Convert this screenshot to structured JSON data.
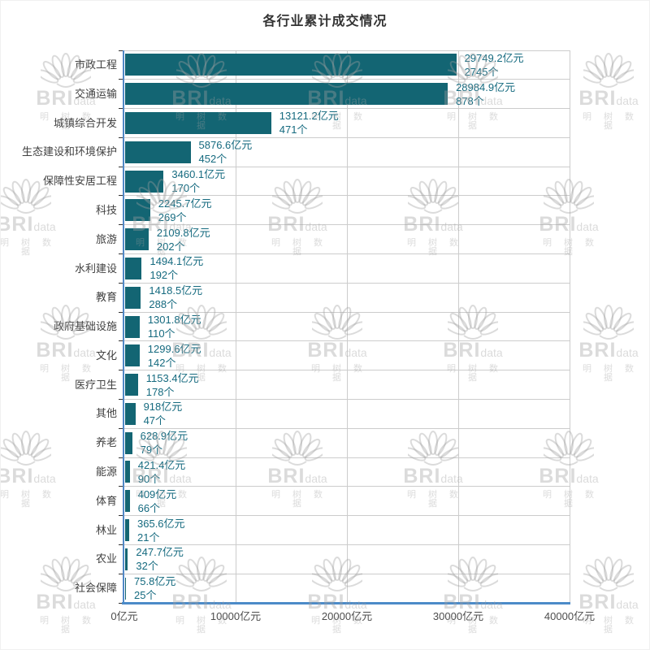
{
  "title": "各行业累计成交情况",
  "watermark": {
    "brand": "BRI",
    "brand_sub": "data",
    "brand_cn": "明 树 数 据"
  },
  "colors": {
    "bar": "#136573",
    "value_label": "#156A7F",
    "category_label": "#404040",
    "axis_line_blue": "#4C8BC8",
    "grid_line": "#CCCCCC",
    "tick_mark": "#333333",
    "axis_tick_label": "#4D4D4D",
    "title": "#333333"
  },
  "x_axis": {
    "min": 0,
    "max": 40000,
    "ticks": [
      "0亿元",
      "10000亿元",
      "20000亿元",
      "30000亿元",
      "40000亿元"
    ]
  },
  "chart_data": {
    "type": "bar",
    "orientation": "horizontal",
    "title": "各行业累计成交情况",
    "xlim": [
      0,
      40000
    ],
    "grid": true,
    "legend_position": "none",
    "categories": [
      "市政工程",
      "交通运输",
      "城镇综合开发",
      "生态建设和环境保护",
      "保障性安居工程",
      "科技",
      "旅游",
      "水利建设",
      "教育",
      "政府基础设施",
      "文化",
      "医疗卫生",
      "其他",
      "养老",
      "能源",
      "体育",
      "林业",
      "农业",
      "社会保障"
    ],
    "series": [
      {
        "name": "亿元",
        "values": [
          29749.2,
          28984.9,
          13121.2,
          5876.6,
          3460.1,
          2245.7,
          2109.8,
          1494.1,
          1418.5,
          1301.8,
          1299.6,
          1153.4,
          918,
          628.9,
          421.4,
          409,
          365.6,
          247.7,
          75.8
        ]
      },
      {
        "name": "个",
        "values": [
          2745,
          878,
          471,
          452,
          170,
          269,
          202,
          192,
          288,
          110,
          142,
          178,
          47,
          79,
          90,
          66,
          21,
          32,
          25
        ]
      }
    ],
    "rows": [
      {
        "category": "市政工程",
        "amount": 29749.2,
        "count": 2745,
        "amount_label": "29749.2亿元",
        "count_label": "2745个"
      },
      {
        "category": "交通运输",
        "amount": 28984.9,
        "count": 878,
        "amount_label": "28984.9亿元",
        "count_label": "878个"
      },
      {
        "category": "城镇综合开发",
        "amount": 13121.2,
        "count": 471,
        "amount_label": "13121.2亿元",
        "count_label": "471个"
      },
      {
        "category": "生态建设和环境保护",
        "amount": 5876.6,
        "count": 452,
        "amount_label": "5876.6亿元",
        "count_label": "452个"
      },
      {
        "category": "保障性安居工程",
        "amount": 3460.1,
        "count": 170,
        "amount_label": "3460.1亿元",
        "count_label": "170个"
      },
      {
        "category": "科技",
        "amount": 2245.7,
        "count": 269,
        "amount_label": "2245.7亿元",
        "count_label": "269个"
      },
      {
        "category": "旅游",
        "amount": 2109.8,
        "count": 202,
        "amount_label": "2109.8亿元",
        "count_label": "202个"
      },
      {
        "category": "水利建设",
        "amount": 1494.1,
        "count": 192,
        "amount_label": "1494.1亿元",
        "count_label": "192个"
      },
      {
        "category": "教育",
        "amount": 1418.5,
        "count": 288,
        "amount_label": "1418.5亿元",
        "count_label": "288个"
      },
      {
        "category": "政府基础设施",
        "amount": 1301.8,
        "count": 110,
        "amount_label": "1301.8亿元",
        "count_label": "110个"
      },
      {
        "category": "文化",
        "amount": 1299.6,
        "count": 142,
        "amount_label": "1299.6亿元",
        "count_label": "142个"
      },
      {
        "category": "医疗卫生",
        "amount": 1153.4,
        "count": 178,
        "amount_label": "1153.4亿元",
        "count_label": "178个"
      },
      {
        "category": "其他",
        "amount": 918,
        "count": 47,
        "amount_label": "918亿元",
        "count_label": "47个"
      },
      {
        "category": "养老",
        "amount": 628.9,
        "count": 79,
        "amount_label": "628.9亿元",
        "count_label": "79个"
      },
      {
        "category": "能源",
        "amount": 421.4,
        "count": 90,
        "amount_label": "421.4亿元",
        "count_label": "90个"
      },
      {
        "category": "体育",
        "amount": 409,
        "count": 66,
        "amount_label": "409亿元",
        "count_label": "66个"
      },
      {
        "category": "林业",
        "amount": 365.6,
        "count": 21,
        "amount_label": "365.6亿元",
        "count_label": "21个"
      },
      {
        "category": "农业",
        "amount": 247.7,
        "count": 32,
        "amount_label": "247.7亿元",
        "count_label": "32个"
      },
      {
        "category": "社会保障",
        "amount": 75.8,
        "count": 25,
        "amount_label": "75.8亿元",
        "count_label": "25个"
      }
    ]
  }
}
